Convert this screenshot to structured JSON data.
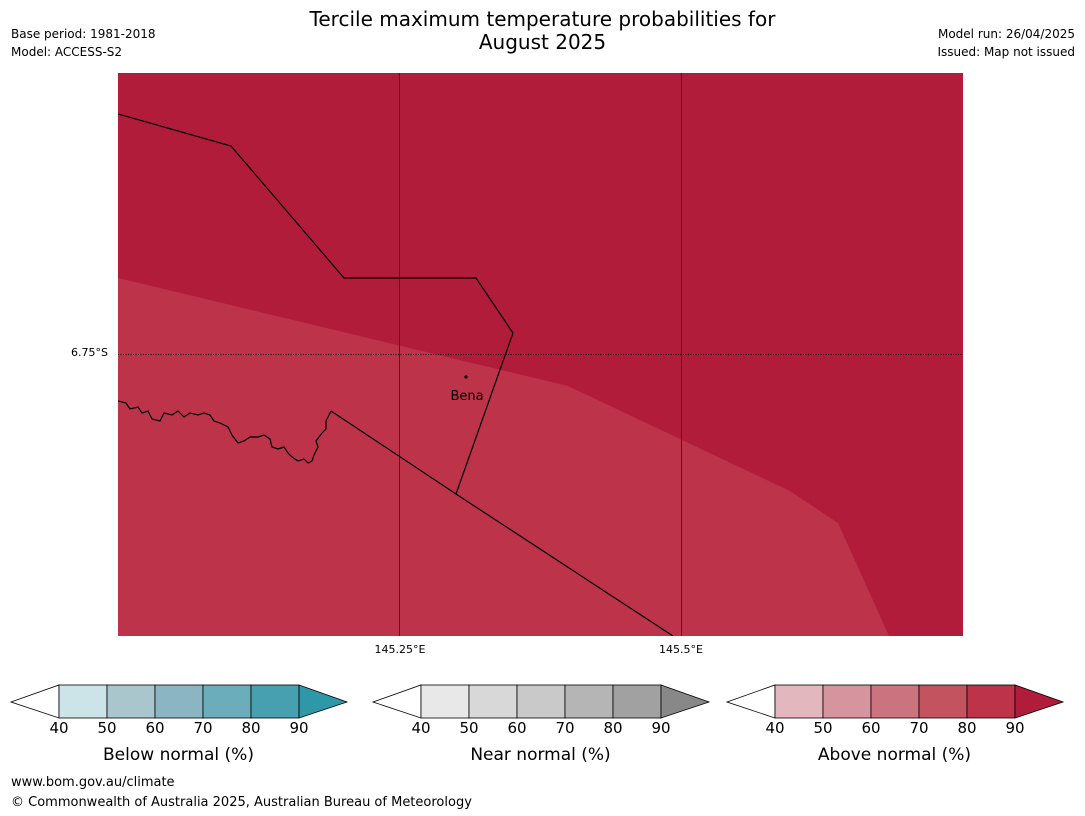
{
  "title_line1": "Tercile maximum temperature probabilities for",
  "title_line2": "August 2025",
  "meta_left": {
    "base_period": "Base period: 1981-2018",
    "model": "Model: ACCESS-S2"
  },
  "meta_right": {
    "model_run": "Model run: 26/04/2025",
    "issued": "Issued: Map not issued"
  },
  "map": {
    "lat_label": "6.75°S",
    "lon_labels": [
      "145.25°E",
      "145.5°E"
    ],
    "place_name": "Bena",
    "colors": {
      "above_90": "#b01c3a",
      "above_80": "#bd334a"
    }
  },
  "colorbars": [
    {
      "label": "Below normal (%)",
      "ticks": [
        "40",
        "50",
        "60",
        "70",
        "80",
        "90"
      ],
      "colors": [
        "#ffffff",
        "#cce3e8",
        "#a9c6cd",
        "#8bb5c3",
        "#6badba",
        "#46a0b0",
        "#2f98a8"
      ]
    },
    {
      "label": "Near normal (%)",
      "ticks": [
        "40",
        "50",
        "60",
        "70",
        "80",
        "90"
      ],
      "colors": [
        "#ffffff",
        "#e8e8e8",
        "#d8d8d8",
        "#c9c9c9",
        "#b5b5b5",
        "#a1a1a1",
        "#888888"
      ]
    },
    {
      "label": "Above normal (%)",
      "ticks": [
        "40",
        "50",
        "60",
        "70",
        "80",
        "90"
      ],
      "colors": [
        "#ffffff",
        "#e2b8be",
        "#d6949e",
        "#cb747f",
        "#c3545f",
        "#bd334a",
        "#b01c3a"
      ]
    }
  ],
  "footer": {
    "url": "www.bom.gov.au/climate",
    "copyright": "© Commonwealth of Australia 2025, Australian Bureau of Meteorology"
  }
}
